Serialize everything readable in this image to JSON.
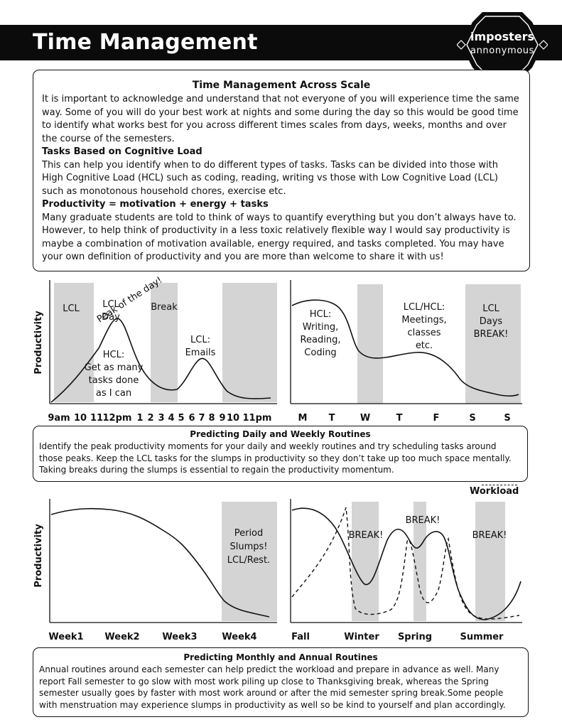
{
  "header": {
    "title": "Time Management",
    "logo_line1": "imposters",
    "logo_line2": "annonymous"
  },
  "intro": {
    "title": "Time Management Across Scale",
    "paragraph1": "It is important to acknowledge and understand that not everyone of you will experience time the same way. Some of you will do your best work at nights and some during the day so this would be good time to identify what works best for you across different times scales from days, weeks, months and over the course of the semesters.",
    "subheading1": "Tasks Based on Cognitive Load",
    "paragraph2": "This can help you identify when to do different types of tasks. Tasks can be divided into those with High Cognitive Load (HCL) such as coding, reading, writing vs those with Low Cognitive Load (LCL) such as monotonous household chores, exercise etc.",
    "subheading2": "Productivity = motivation + energy + tasks",
    "paragraph3": "Many graduate students are told to think of ways to quantify everything but you don’t always have to. However, to help think of productivity in a less toxic relatively flexible way I would say productivity is maybe a combination of motivation available, energy required, and tasks completed. You may have your own definition of productivity and you are more than welcome to share it with us!"
  },
  "routines_daily_weekly": {
    "title": "Predicting Daily and Weekly Routines",
    "text": "Identify the peak productivity moments for your daily and weekly routines and try scheduling tasks around those peaks. Keep the LCL tasks for the slumps in productivity so they don’t take up too much space mentally. Taking breaks during the slumps is essential to regain the productivity momentum."
  },
  "routines_monthly_annual": {
    "title": "Predicting Monthly and Annual Routines",
    "text": "Annual routines around each semester can help predict the workload and prepare in advance as well. Many report Fall semester to go slow with most work piling up close to Thanksgiving break, whereas the Spring semester usually goes by faster with most work around or after the mid semester spring break.Some people with menstruation may experience slumps in productivity as well so be kind to yourself and plan accordingly."
  },
  "chart_data": [
    {
      "type": "line",
      "ylabel": "Productivity",
      "categories": [
        "9am",
        "10",
        "11",
        "12pm",
        "1",
        "2",
        "3",
        "4",
        "5",
        "6",
        "7",
        "8",
        "9",
        "10",
        "11pm"
      ],
      "ylim": [
        0,
        100
      ],
      "series": [
        {
          "values": [
            3,
            16,
            32,
            58,
            82,
            62,
            26,
            14,
            14,
            32,
            47,
            22,
            8,
            9,
            9
          ]
        }
      ],
      "shaded_regions": [
        {
          "label": "LCL",
          "from": "9am",
          "to": "11"
        },
        {
          "label": "Break",
          "from": "2",
          "to": "4"
        },
        {
          "label": "",
          "from": "9",
          "to": "11pm"
        }
      ],
      "annotations": [
        "Peak of the day!",
        "HCL:\nGet as many\ntasks done\nas I can",
        "LCL:\nEmails"
      ]
    },
    {
      "type": "line",
      "categories": [
        "M",
        "T",
        "W",
        "T",
        "F",
        "S",
        "S"
      ],
      "ylim": [
        0,
        100
      ],
      "series": [
        {
          "values": [
            88,
            84,
            35,
            35,
            42,
            14,
            5
          ]
        }
      ],
      "shaded_regions": [
        {
          "label": "LCL\nDay",
          "at": "W"
        },
        {
          "label": "LCL\nDays\nBREAK!",
          "from": "S",
          "to": "S"
        }
      ],
      "annotations": [
        "HCL:\nWriting,\nReading,\nCoding",
        "LCL/HCL:\nMeetings,\nclasses\netc."
      ]
    },
    {
      "type": "line",
      "ylabel": "Productivity",
      "categories": [
        "Week1",
        "Week2",
        "Week3",
        "Week4"
      ],
      "ylim": [
        0,
        100
      ],
      "series": [
        {
          "values": [
            84,
            85,
            62,
            28
          ]
        }
      ],
      "shaded_regions": [
        {
          "label": "Period\nSlumps!\nLCL/Rest.",
          "at": "Week4"
        }
      ]
    },
    {
      "type": "line",
      "categories": [
        "Fall",
        "Winter",
        "Spring",
        "Summer"
      ],
      "ylim": [
        0,
        100
      ],
      "series": [
        {
          "values": [
            95,
            30,
            68,
            10
          ]
        },
        {
          "name": "Workload",
          "style": "dashed",
          "values": [
            20,
            7,
            70,
            3
          ]
        }
      ],
      "shaded_regions": [
        {
          "label": "BREAK!",
          "at": "Winter"
        },
        {
          "label": "BREAK!",
          "at": "Spring"
        },
        {
          "label": "BREAK!",
          "at": "Summer"
        }
      ]
    }
  ]
}
